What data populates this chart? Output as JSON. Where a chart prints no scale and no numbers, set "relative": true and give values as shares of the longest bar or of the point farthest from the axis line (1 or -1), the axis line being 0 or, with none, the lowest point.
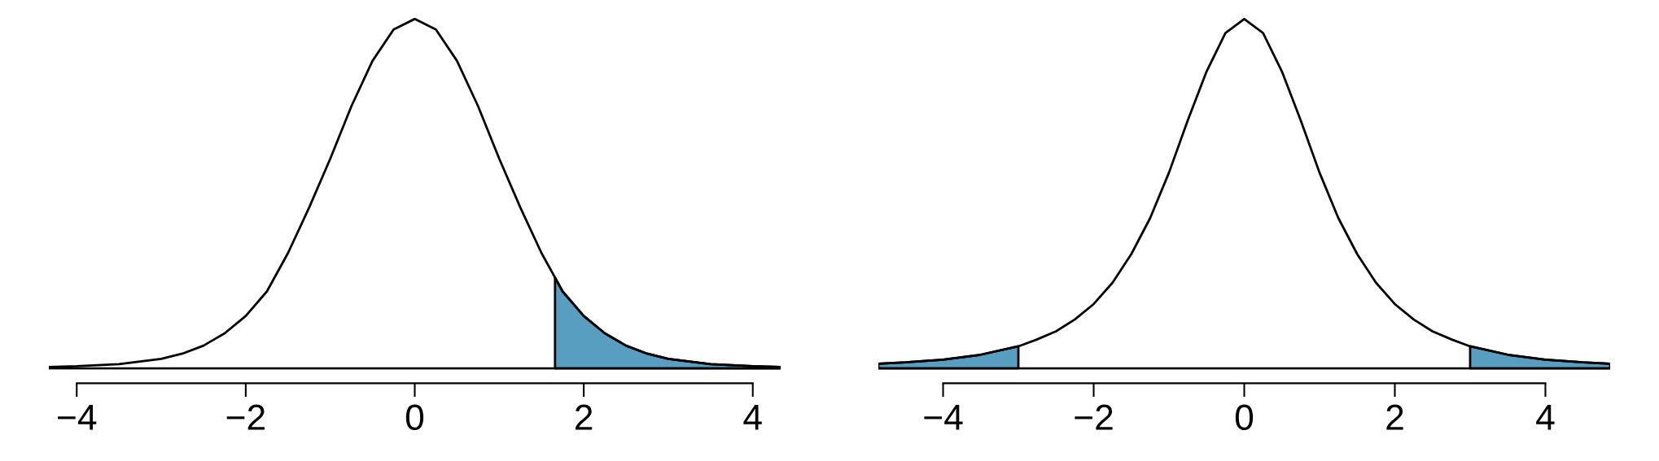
{
  "chart_data": [
    {
      "type": "line",
      "relative": true,
      "xlim": [
        -4.33,
        4.33
      ],
      "xticks": [
        -4,
        -2,
        0,
        2,
        4
      ],
      "tick_labels": "x",
      "grid": false,
      "legend": false,
      "series": [
        {
          "color": "#000000",
          "x": [
            -4.33,
            -4,
            -3.5,
            -3,
            -2.75,
            -2.5,
            -2.25,
            -2,
            -1.75,
            -1.5,
            -1.25,
            -1,
            -0.75,
            -0.5,
            -0.25,
            0,
            0.25,
            0.5,
            0.75,
            1,
            1.25,
            1.5,
            1.66,
            1.75,
            2,
            2.25,
            2.5,
            2.75,
            3,
            3.5,
            4,
            4.33
          ],
          "values": [
            0.004,
            0.006,
            0.012,
            0.027,
            0.042,
            0.065,
            0.1,
            0.15,
            0.22,
            0.33,
            0.46,
            0.6,
            0.75,
            0.88,
            0.97,
            1,
            0.97,
            0.88,
            0.75,
            0.6,
            0.46,
            0.33,
            0.26,
            0.22,
            0.15,
            0.1,
            0.065,
            0.042,
            0.027,
            0.012,
            0.006,
            0.004
          ]
        },
        {
          "type": "area",
          "color": "#579ec1",
          "x": [
            1.66,
            1.75,
            2,
            2.25,
            2.5,
            2.75,
            3,
            3.5,
            4,
            4.33
          ],
          "values": [
            0.26,
            0.22,
            0.15,
            0.1,
            0.065,
            0.042,
            0.027,
            0.012,
            0.006,
            0.004
          ]
        }
      ]
    },
    {
      "type": "line",
      "relative": true,
      "xlim": [
        -4.86,
        4.86
      ],
      "xticks": [
        -4,
        -2,
        0,
        2,
        4
      ],
      "tick_labels": "x",
      "grid": false,
      "legend": false,
      "series": [
        {
          "color": "#000000",
          "x": [
            -4.86,
            -4.5,
            -4,
            -3.5,
            -3,
            -2.75,
            -2.5,
            -2.25,
            -2,
            -1.75,
            -1.5,
            -1.25,
            -1,
            -0.75,
            -0.5,
            -0.25,
            0,
            0.25,
            0.5,
            0.75,
            1,
            1.25,
            1.5,
            1.75,
            2,
            2.25,
            2.5,
            2.75,
            3,
            3.5,
            4,
            4.5,
            4.86
          ],
          "values": [
            0.013,
            0.017,
            0.025,
            0.039,
            0.063,
            0.083,
            0.106,
            0.14,
            0.184,
            0.245,
            0.327,
            0.43,
            0.56,
            0.71,
            0.85,
            0.96,
            1,
            0.96,
            0.85,
            0.71,
            0.56,
            0.43,
            0.327,
            0.245,
            0.184,
            0.14,
            0.106,
            0.083,
            0.063,
            0.039,
            0.025,
            0.017,
            0.013
          ]
        },
        {
          "type": "area",
          "color": "#579ec1",
          "x": [
            -4.86,
            -4.5,
            -4,
            -3.5,
            -3
          ],
          "values": [
            0.013,
            0.017,
            0.025,
            0.039,
            0.063
          ]
        },
        {
          "type": "area",
          "color": "#579ec1",
          "x": [
            3,
            3.5,
            4,
            4.5,
            4.86
          ],
          "values": [
            0.063,
            0.039,
            0.025,
            0.017,
            0.013
          ]
        }
      ]
    }
  ]
}
